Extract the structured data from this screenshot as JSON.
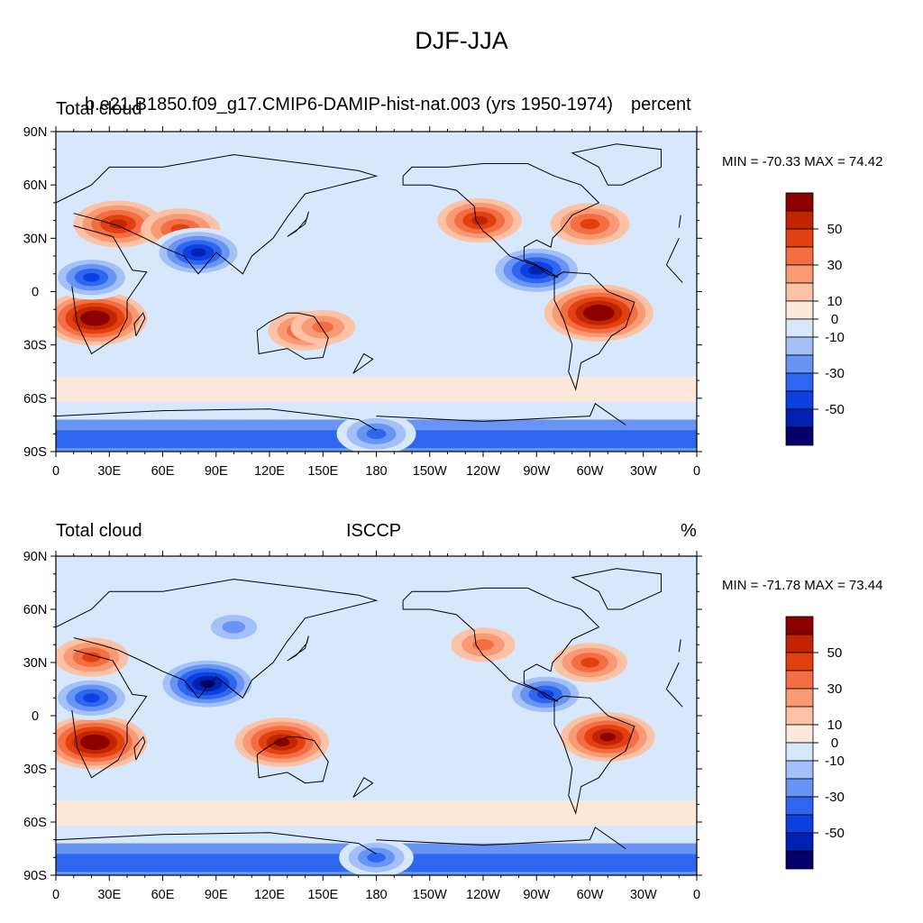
{
  "page": {
    "title": "DJF-JJA"
  },
  "colorbar": {
    "colors": [
      "#08006a",
      "#0022b0",
      "#0c40e0",
      "#2e66f0",
      "#6894f4",
      "#a3c0f8",
      "#d8e8fc",
      "#fde8da",
      "#fcc2a6",
      "#f99a74",
      "#f46e44",
      "#e24010",
      "#c22400",
      "#8c0000"
    ],
    "labels": [
      "50",
      "30",
      "10",
      "0",
      "-10",
      "-30",
      "-50"
    ],
    "label_colors": [
      12,
      10,
      8,
      7,
      6,
      4,
      2
    ]
  },
  "panels": [
    {
      "left_title": "Total cloud",
      "center_title": "b.e21.B1850.f09_g17.CMIP6-DAMIP-hist-nat.003 (yrs 1950-1974)",
      "right_title": "percent",
      "minmax": "MIN = -70.33 MAX =  74.42"
    },
    {
      "left_title": "Total cloud",
      "center_title": "ISCCP",
      "right_title": "%",
      "minmax": "MIN = -71.78 MAX =  73.44"
    }
  ],
  "axes": {
    "x_labels": [
      "0",
      "30E",
      "60E",
      "90E",
      "120E",
      "150E",
      "180",
      "150W",
      "120W",
      "90W",
      "60W",
      "30W",
      "0"
    ],
    "y_labels": [
      "90N",
      "60N",
      "30N",
      "0",
      "30S",
      "60S",
      "90S"
    ]
  },
  "chart_data": [
    {
      "type": "heatmap",
      "title": "DJF-JJA",
      "subtitle": "b.e21.B1850.f09_g17.CMIP6-DAMIP-hist-nat.003 (yrs 1950-1974)",
      "variable": "Total cloud",
      "units": "percent",
      "min": -70.33,
      "max": 74.42,
      "xlim": [
        0,
        360
      ],
      "ylim": [
        -90,
        90
      ],
      "levels": [
        -60,
        -50,
        -40,
        -30,
        -20,
        -10,
        0,
        10,
        20,
        30,
        40,
        50,
        60
      ],
      "features": [
        {
          "lon": 22,
          "lat": -15,
          "value": 65
        },
        {
          "lon": 305,
          "lat": -12,
          "value": 70
        },
        {
          "lon": 35,
          "lat": 38,
          "value": 50
        },
        {
          "lon": 70,
          "lat": 35,
          "value": 40
        },
        {
          "lon": 238,
          "lat": 40,
          "value": 45
        },
        {
          "lon": 140,
          "lat": -22,
          "value": 35
        },
        {
          "lon": 80,
          "lat": 22,
          "value": -55
        },
        {
          "lon": 270,
          "lat": 12,
          "value": -60
        },
        {
          "lon": 150,
          "lat": -20,
          "value": 25
        },
        {
          "lon": 300,
          "lat": 38,
          "value": 40
        },
        {
          "lon": 180,
          "lat": -80,
          "value": -40
        },
        {
          "lon": 20,
          "lat": 8,
          "value": -45
        }
      ]
    },
    {
      "type": "heatmap",
      "title": "DJF-JJA",
      "subtitle": "ISCCP",
      "variable": "Total cloud",
      "units": "%",
      "min": -71.78,
      "max": 73.44,
      "xlim": [
        0,
        360
      ],
      "ylim": [
        -90,
        90
      ],
      "levels": [
        -60,
        -50,
        -40,
        -30,
        -20,
        -10,
        0,
        10,
        20,
        30,
        40,
        50,
        60
      ],
      "features": [
        {
          "lon": 22,
          "lat": -15,
          "value": 65
        },
        {
          "lon": 127,
          "lat": -15,
          "value": 55
        },
        {
          "lon": 310,
          "lat": -12,
          "value": 55
        },
        {
          "lon": 85,
          "lat": 18,
          "value": -65
        },
        {
          "lon": 275,
          "lat": 12,
          "value": -45
        },
        {
          "lon": 20,
          "lat": 10,
          "value": -45
        },
        {
          "lon": 20,
          "lat": 33,
          "value": 35
        },
        {
          "lon": 300,
          "lat": 30,
          "value": 35
        },
        {
          "lon": 180,
          "lat": -80,
          "value": -35
        },
        {
          "lon": 100,
          "lat": 50,
          "value": -30
        },
        {
          "lon": 240,
          "lat": 40,
          "value": 25
        }
      ]
    }
  ]
}
